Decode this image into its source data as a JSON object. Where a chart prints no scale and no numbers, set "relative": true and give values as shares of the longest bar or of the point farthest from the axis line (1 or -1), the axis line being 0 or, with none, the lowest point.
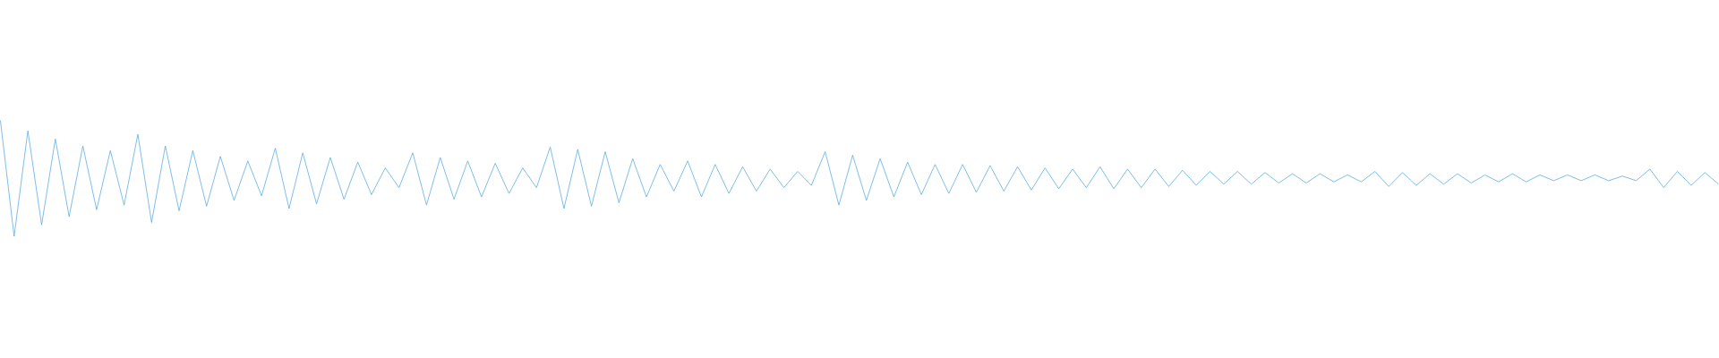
{
  "chart_data": {
    "type": "line",
    "relative": true,
    "categories": [
      null,
      null,
      null,
      null,
      null,
      null,
      null,
      null,
      null,
      null,
      null,
      null,
      null,
      null,
      null,
      null,
      null,
      null,
      null,
      null,
      null,
      null,
      null,
      null,
      null,
      null,
      null,
      null,
      null,
      null,
      null,
      null,
      null,
      null,
      null,
      null,
      null,
      null,
      null,
      null,
      null,
      null,
      null,
      null,
      null,
      null,
      null,
      null,
      null,
      null,
      null,
      null,
      null,
      null,
      null,
      null,
      null,
      null,
      null,
      null,
      null,
      null,
      null,
      null,
      null,
      null,
      null,
      null,
      null,
      null,
      null,
      null,
      null,
      null,
      null,
      null,
      null,
      null,
      null,
      null,
      null,
      null,
      null,
      null,
      null,
      null,
      null,
      null,
      null,
      null,
      null,
      null,
      null,
      null,
      null,
      null,
      null,
      null,
      null,
      null,
      null,
      null,
      null,
      null,
      null,
      null,
      null,
      null,
      null,
      null,
      null,
      null,
      null,
      null,
      null,
      null,
      null,
      null,
      null,
      null,
      null,
      null,
      null,
      null,
      null,
      null
    ],
    "series": [
      {
        "color": "#5dade2",
        "values": [
          1.0,
          0.0,
          0.91,
          0.1,
          0.84,
          0.17,
          0.78,
          0.23,
          0.74,
          0.27,
          0.88,
          0.12,
          0.78,
          0.22,
          0.74,
          0.26,
          0.69,
          0.31,
          0.65,
          0.35,
          0.76,
          0.24,
          0.72,
          0.28,
          0.68,
          0.32,
          0.64,
          0.36,
          0.59,
          0.42,
          0.72,
          0.27,
          0.68,
          0.32,
          0.65,
          0.34,
          0.63,
          0.37,
          0.59,
          0.42,
          0.77,
          0.24,
          0.75,
          0.26,
          0.73,
          0.29,
          0.67,
          0.34,
          0.62,
          0.39,
          0.65,
          0.34,
          0.62,
          0.37,
          0.6,
          0.39,
          0.58,
          0.42,
          0.56,
          0.44,
          0.73,
          0.27,
          0.7,
          0.31,
          0.67,
          0.34,
          0.64,
          0.36,
          0.62,
          0.37,
          0.62,
          0.38,
          0.61,
          0.39,
          0.6,
          0.4,
          0.59,
          0.41,
          0.58,
          0.42,
          0.6,
          0.41,
          0.58,
          0.42,
          0.58,
          0.43,
          0.57,
          0.44,
          0.56,
          0.45,
          0.56,
          0.45,
          0.55,
          0.46,
          0.54,
          0.46,
          0.54,
          0.47,
          0.53,
          0.47,
          0.56,
          0.43,
          0.55,
          0.44,
          0.54,
          0.45,
          0.54,
          0.46,
          0.53,
          0.47,
          0.54,
          0.47,
          0.53,
          0.48,
          0.53,
          0.48,
          0.53,
          0.48,
          0.52,
          0.48,
          0.58,
          0.42,
          0.56,
          0.44,
          0.55,
          0.45
        ]
      }
    ]
  }
}
